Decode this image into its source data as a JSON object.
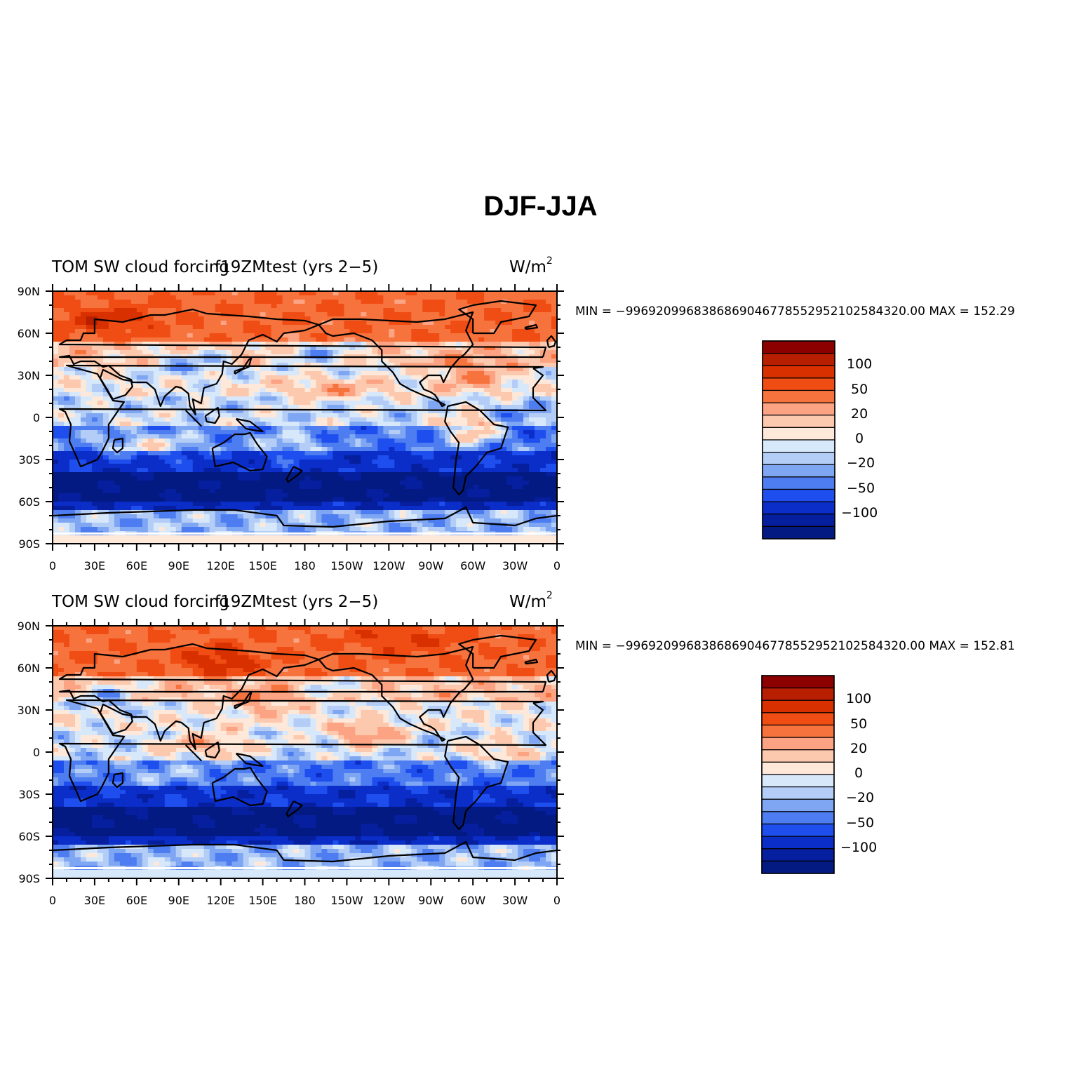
{
  "title": "DJF-JJA",
  "panels": [
    {
      "left_label": "TOM SW cloud forcing",
      "center_label": "f19ZMtest (yrs 2−5)",
      "units": "W/m",
      "units_sup": "2",
      "stats": "MIN = −9969209968386869046778552952102584320.00 MAX = 152.29",
      "variant": 0
    },
    {
      "left_label": "TOM SW cloud forcing",
      "center_label": "f19ZMtest (yrs 2−5)",
      "units": "W/m",
      "units_sup": "2",
      "stats": "MIN = −9969209968386869046778552952102584320.00 MAX = 152.81",
      "variant": 1
    }
  ],
  "lat_ticks": [
    "90N",
    "60N",
    "30N",
    "0",
    "30S",
    "60S",
    "90S"
  ],
  "lon_ticks": [
    "0",
    "30E",
    "60E",
    "90E",
    "120E",
    "150E",
    "180",
    "150W",
    "120W",
    "90W",
    "60W",
    "30W",
    "0"
  ],
  "colorbar_labels": [
    "100",
    "50",
    "20",
    "0",
    "−20",
    "−50",
    "−100"
  ],
  "colorbar_colors": [
    "#8c0000",
    "#b81e00",
    "#d93000",
    "#f04d14",
    "#f7733d",
    "#fba382",
    "#fcc8ae",
    "#fde8da",
    "#d8e8fb",
    "#b3cdf7",
    "#7fa6f2",
    "#4d7df0",
    "#1e4fee",
    "#0b2dc8",
    "#061f9e",
    "#031a82"
  ]
}
